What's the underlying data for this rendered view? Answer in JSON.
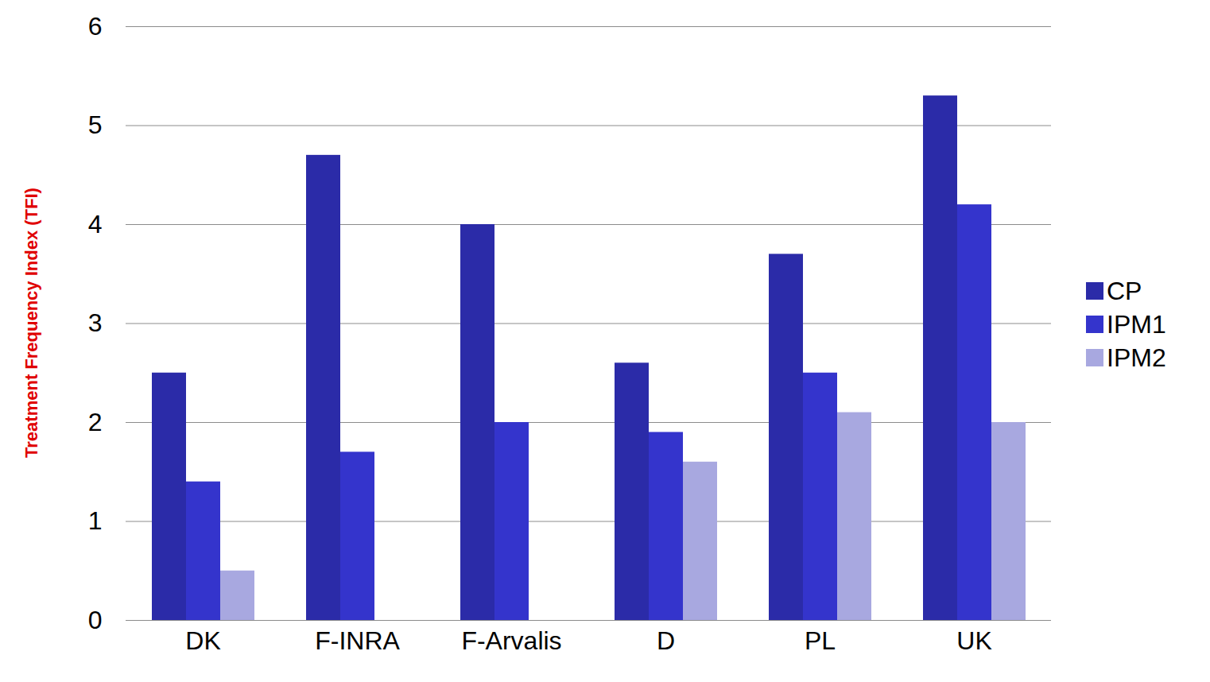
{
  "chart_data": {
    "type": "bar",
    "ylabel": "Treatment Frequency Index (TFI)",
    "categories": [
      "DK",
      "F-INRA",
      "F-Arvalis",
      "D",
      "PL",
      "UK"
    ],
    "series": [
      {
        "name": "CP",
        "color": "#2b2ba8",
        "values": [
          2.5,
          4.7,
          4.0,
          2.6,
          3.7,
          5.3
        ]
      },
      {
        "name": "IPM1",
        "color": "#3434cc",
        "values": [
          1.4,
          1.7,
          2.0,
          1.9,
          2.5,
          4.2
        ]
      },
      {
        "name": "IPM2",
        "color": "#a8a8e0",
        "values": [
          0.5,
          null,
          null,
          1.6,
          2.1,
          2.0
        ]
      }
    ],
    "ylim": [
      0,
      6
    ],
    "yticks": [
      0,
      1,
      2,
      3,
      4,
      5,
      6
    ],
    "grid": true,
    "legend": "right"
  }
}
